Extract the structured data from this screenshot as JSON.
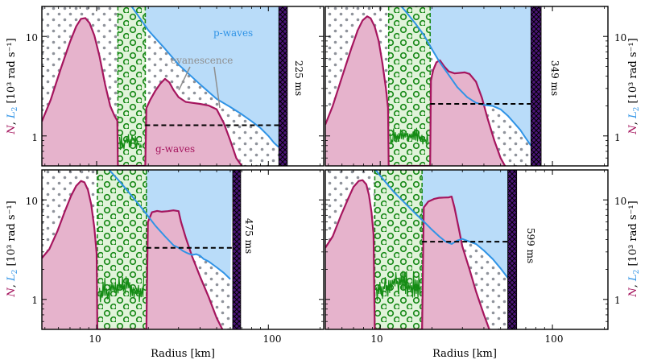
{
  "chart_data": {
    "type": "area",
    "xlabel": "Radius [km]",
    "ylabel": {
      "n_symbol": "N",
      "sep": ", ",
      "l2_symbol": "L",
      "l2_sub": "2",
      "unit": " [10³ rad s⁻¹]"
    },
    "xscale": "log",
    "yscale": "log",
    "xlim": [
      4.8,
      210
    ],
    "ylim": [
      0.5,
      20
    ],
    "x_ticks": [
      {
        "value": 10,
        "label": "10"
      },
      {
        "value": 100,
        "label": "100"
      }
    ],
    "y_ticks": [
      {
        "value": 1,
        "label": "1"
      },
      {
        "value": 10,
        "label": "10"
      }
    ],
    "annotations": {
      "p_waves": "p-waves",
      "g_waves": "g-waves",
      "evanescence": "evanescence"
    },
    "colors": {
      "bv_line": "#a5155e",
      "bv_fill": "#e6b3cc",
      "lamb_line": "#2f93e6",
      "p_fill": "#b9dcf9",
      "conv_line": "#1a8a1a",
      "conv_fill": "#e1f3da",
      "noise": "#148c14",
      "shock_fill": "#4b1478",
      "ann_gray": "#8f8f8f",
      "dots": "#8f939b"
    },
    "panels": [
      {
        "id": "a",
        "time_label": "225 ms",
        "conv_zone": [
          13.3,
          19.2
        ],
        "shock": [
          115,
          129
        ],
        "dashed_line": {
          "x": [
            19.2,
            115
          ],
          "y": 1.28
        },
        "noise": {
          "x": [
            13.6,
            18.5
          ],
          "low": 0.62,
          "high": 1.08
        },
        "bv_curve": {
          "x": [
            4.8,
            5.4,
            6.2,
            7.0,
            7.6,
            8.1,
            8.6,
            9.1,
            9.7,
            10.4,
            11.2,
            12.0,
            12.7,
            13.2,
            13.3,
            19.2,
            19.5,
            20.5,
            22,
            23.5,
            25,
            26.5,
            28,
            30,
            33,
            36,
            40,
            45,
            50,
            55,
            60,
            65,
            70
          ],
          "y": [
            1.4,
            2.3,
            4.8,
            8.8,
            12.6,
            15.0,
            15.3,
            13.6,
            10.2,
            6.3,
            3.3,
            2.0,
            1.6,
            1.42,
            0.5,
            0.5,
            1.9,
            2.3,
            2.85,
            3.35,
            3.75,
            3.45,
            2.9,
            2.45,
            2.2,
            2.15,
            2.1,
            2.02,
            1.85,
            1.35,
            0.9,
            0.6,
            0.5
          ]
        },
        "lamb_curve": {
          "x": [
            4.8,
            7,
            10,
            12,
            14,
            16,
            18,
            20,
            25,
            30,
            40,
            50,
            60,
            70,
            80,
            90,
            100,
            108,
            115
          ],
          "y": [
            200,
            120,
            56,
            38,
            27,
            20,
            15,
            11.5,
            7.5,
            5.2,
            3.3,
            2.35,
            1.95,
            1.65,
            1.4,
            1.2,
            1.0,
            0.85,
            0.77
          ]
        },
        "show": {
          "p_label": true,
          "g_label": true,
          "evanescence": true,
          "x_labels": false,
          "y_left": true,
          "y_right": false
        }
      },
      {
        "id": "b",
        "time_label": "349 ms",
        "conv_zone": [
          11.2,
          19.5
        ],
        "shock": [
          75,
          86
        ],
        "dashed_line": {
          "x": [
            19.5,
            75
          ],
          "y": 2.1
        },
        "noise": {
          "x": [
            11.4,
            19.0
          ],
          "low": 0.72,
          "high": 1.22
        },
        "bv_curve": {
          "x": [
            4.8,
            5.3,
            6.0,
            6.8,
            7.4,
            7.9,
            8.4,
            8.8,
            9.3,
            9.8,
            10.3,
            10.8,
            11.1,
            11.2,
            19.5,
            19.7,
            20.3,
            21.2,
            22.2,
            23.5,
            25,
            27,
            29,
            31,
            33,
            36,
            39,
            42,
            46,
            50,
            53
          ],
          "y": [
            1.3,
            2.0,
            3.9,
            7.6,
            11.5,
            14.5,
            15.9,
            15.2,
            12.5,
            9.0,
            5.4,
            3.0,
            1.9,
            0.5,
            0.5,
            3.6,
            4.6,
            5.5,
            5.75,
            5.0,
            4.45,
            4.25,
            4.3,
            4.35,
            4.2,
            3.5,
            2.4,
            1.5,
            0.9,
            0.6,
            0.5
          ]
        },
        "lamb_curve": {
          "x": [
            4.8,
            6,
            8,
            10,
            12,
            14,
            16,
            18,
            20,
            22,
            25,
            28,
            32,
            36,
            40,
            45,
            50,
            55,
            60,
            65,
            70,
            75
          ],
          "y": [
            220,
            120,
            60,
            36,
            24.5,
            18,
            13.5,
            10.2,
            7.4,
            5.6,
            4.1,
            3.1,
            2.45,
            2.15,
            2.05,
            2.0,
            1.85,
            1.6,
            1.35,
            1.15,
            0.95,
            0.8
          ]
        },
        "show": {
          "p_label": false,
          "g_label": false,
          "evanescence": false,
          "x_labels": false,
          "y_left": false,
          "y_right": true
        }
      },
      {
        "id": "c",
        "time_label": "475 ms",
        "conv_zone": [
          10.1,
          19.5
        ],
        "shock": [
          62,
          69
        ],
        "dashed_line": {
          "x": [
            19.5,
            62
          ],
          "y": 3.3
        },
        "noise": {
          "x": [
            10.4,
            19.0
          ],
          "low": 0.78,
          "high": 1.72
        },
        "bv_curve": {
          "x": [
            4.8,
            5.3,
            5.9,
            6.5,
            7.1,
            7.6,
            8.1,
            8.5,
            8.9,
            9.3,
            9.7,
            10.0,
            10.1,
            19.5,
            19.9,
            21,
            22.5,
            24,
            26,
            28,
            30,
            31,
            33,
            36,
            40,
            45,
            50,
            54
          ],
          "y": [
            2.6,
            3.2,
            4.8,
            7.5,
            11.0,
            13.8,
            15.5,
            15.0,
            12.6,
            9.0,
            5.2,
            2.9,
            0.5,
            0.5,
            6.0,
            7.5,
            7.75,
            7.6,
            7.7,
            7.85,
            7.7,
            6.0,
            4.2,
            2.7,
            1.7,
            1.05,
            0.65,
            0.5
          ]
        },
        "lamb_curve": {
          "x": [
            4.8,
            6,
            8,
            10,
            12,
            14,
            16,
            18,
            20,
            22,
            25,
            28,
            30,
            32,
            34,
            36,
            38,
            40,
            42,
            45,
            50,
            55,
            60
          ],
          "y": [
            220,
            110,
            50,
            28,
            19.5,
            14.5,
            11.0,
            8.6,
            6.8,
            5.5,
            4.3,
            3.5,
            3.3,
            3.05,
            2.9,
            2.8,
            2.85,
            2.75,
            2.55,
            2.4,
            2.1,
            1.85,
            1.6
          ]
        },
        "show": {
          "p_label": false,
          "g_label": false,
          "evanescence": false,
          "x_labels": true,
          "y_left": true,
          "y_right": false
        }
      },
      {
        "id": "d",
        "time_label": "599 ms",
        "conv_zone": [
          9.3,
          17.5
        ],
        "shock": [
          55,
          62
        ],
        "dashed_line": {
          "x": [
            17.5,
            55
          ],
          "y": 3.8
        },
        "noise": {
          "x": [
            9.5,
            17.2
          ],
          "low": 0.8,
          "high": 1.95
        },
        "bv_curve": {
          "x": [
            4.8,
            5.3,
            5.9,
            6.5,
            7.0,
            7.5,
            7.9,
            8.3,
            8.6,
            8.9,
            9.15,
            9.3,
            17.5,
            17.9,
            19,
            20.5,
            22,
            23.5,
            25,
            26,
            27,
            28.5,
            30,
            33,
            36,
            40,
            43
          ],
          "y": [
            3.3,
            4.3,
            6.9,
            10.2,
            13.5,
            15.5,
            15.8,
            14.3,
            11.2,
            7.5,
            4.5,
            0.5,
            0.5,
            8.4,
            9.6,
            10.2,
            10.5,
            10.55,
            10.6,
            10.8,
            8.4,
            5.3,
            3.4,
            2.0,
            1.2,
            0.7,
            0.5
          ]
        },
        "lamb_curve": {
          "x": [
            4.8,
            6,
            7.5,
            9,
            10,
            12,
            14,
            16,
            18,
            20,
            22,
            24,
            26,
            28,
            30,
            33,
            36,
            40,
            45,
            50,
            55
          ],
          "y": [
            150,
            70,
            36,
            22,
            17.5,
            12.0,
            9.2,
            7.3,
            6.0,
            5.0,
            4.3,
            3.8,
            3.6,
            3.9,
            4.05,
            3.8,
            3.6,
            3.1,
            2.55,
            2.05,
            1.65
          ]
        },
        "show": {
          "p_label": false,
          "g_label": false,
          "evanescence": false,
          "x_labels": true,
          "y_left": false,
          "y_right": true
        }
      }
    ]
  }
}
